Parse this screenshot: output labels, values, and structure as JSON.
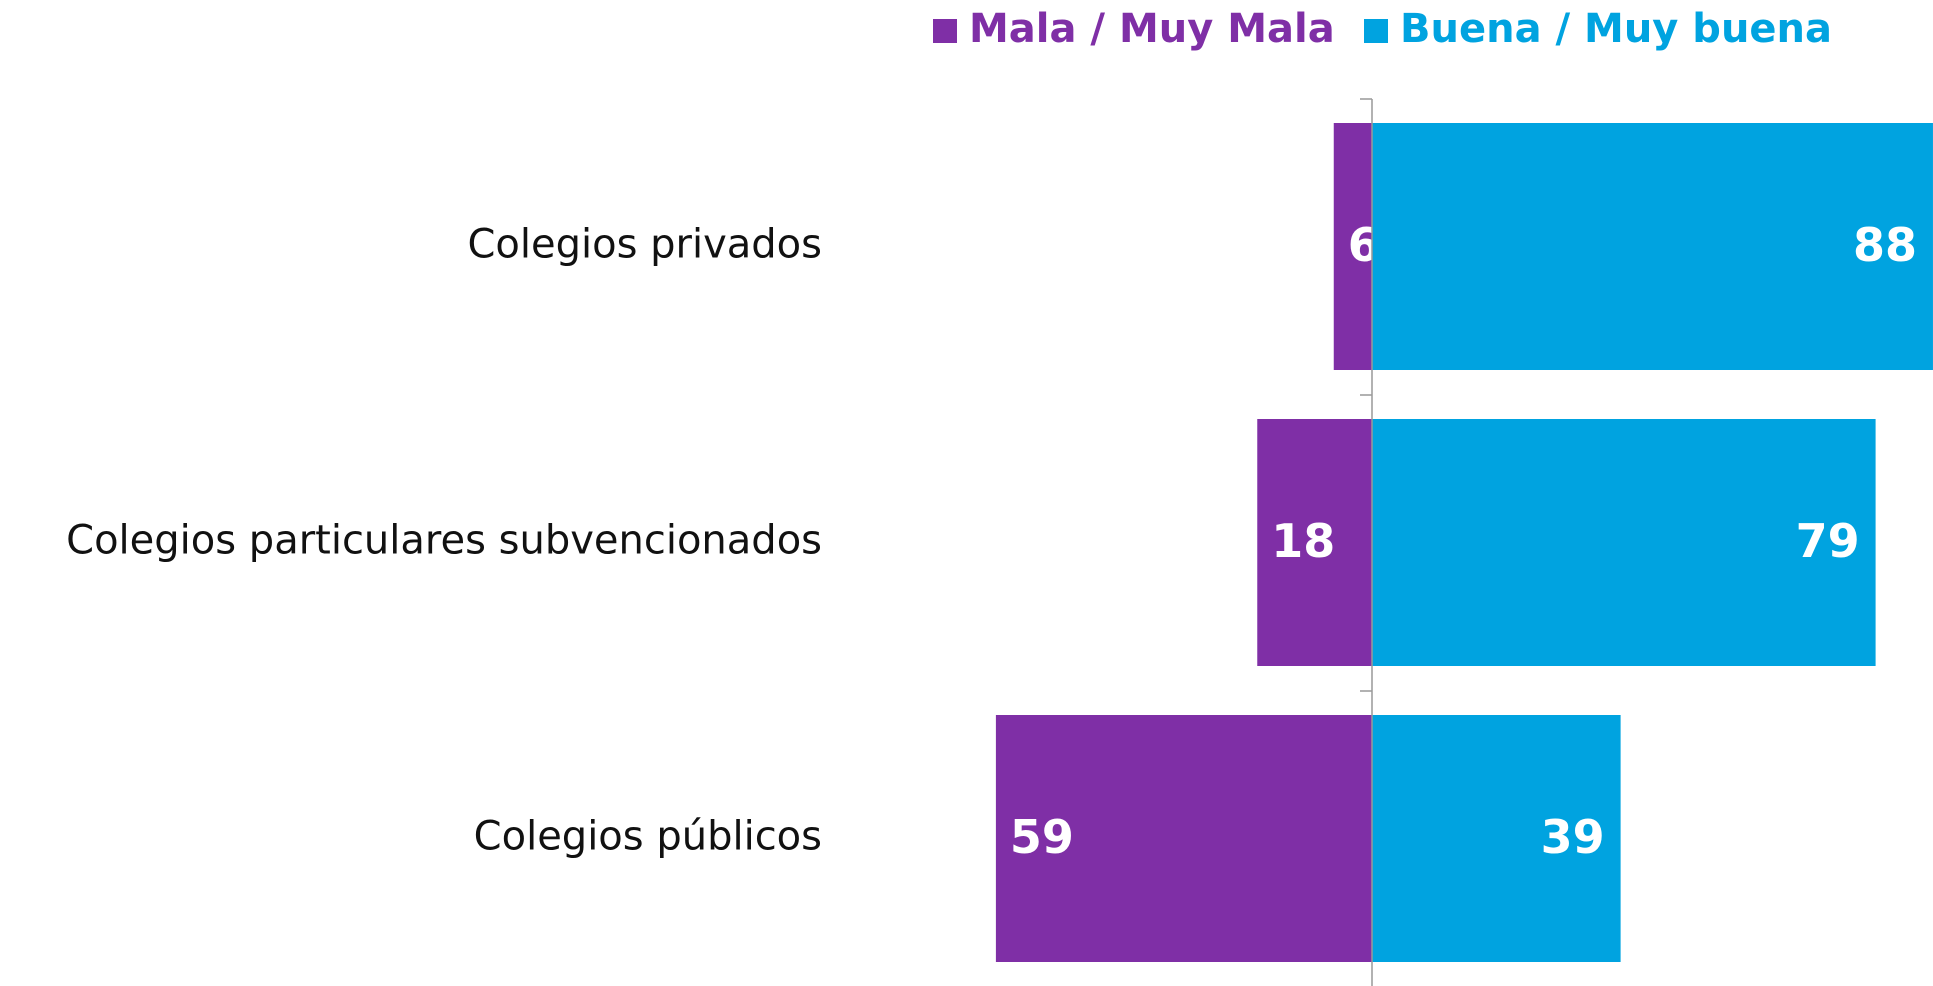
{
  "chart_data": {
    "type": "diverging-bar",
    "categories": [
      "Colegios privados",
      "Colegios particulares subvencionados",
      "Colegios públicos"
    ],
    "series": [
      {
        "name": "Mala / Muy Mala",
        "color": "#7f2fa6",
        "values": [
          6,
          18,
          59
        ]
      },
      {
        "name": "Buena / Muy buena",
        "color": "#00a3e0",
        "values": [
          88,
          79,
          39
        ]
      }
    ]
  }
}
